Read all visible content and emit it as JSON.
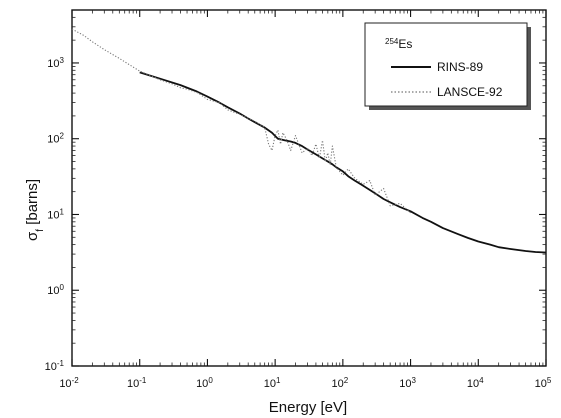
{
  "chart_data": {
    "type": "line",
    "xlabel": "Energy [eV]",
    "ylabel": "σf [barns]",
    "ylabel_main": "σ",
    "ylabel_sub": "f",
    "ylabel_rest": " [barns]",
    "x_scale": "log",
    "y_scale": "log",
    "xlim": [
      0.01,
      100000
    ],
    "ylim": [
      0.1,
      5000
    ],
    "x_ticks": [
      {
        "base": "10",
        "exp": "-2",
        "value": 0.01
      },
      {
        "base": "10",
        "exp": "-1",
        "value": 0.1
      },
      {
        "base": "10",
        "exp": "0",
        "value": 1
      },
      {
        "base": "10",
        "exp": "1",
        "value": 10
      },
      {
        "base": "10",
        "exp": "2",
        "value": 100
      },
      {
        "base": "10",
        "exp": "3",
        "value": 1000
      },
      {
        "base": "10",
        "exp": "4",
        "value": 10000
      },
      {
        "base": "10",
        "exp": "5",
        "value": 100000
      }
    ],
    "y_ticks": [
      {
        "base": "10",
        "exp": "-1",
        "value": 0.1
      },
      {
        "base": "10",
        "exp": "0",
        "value": 1
      },
      {
        "base": "10",
        "exp": "1",
        "value": 10
      },
      {
        "base": "10",
        "exp": "2",
        "value": 100
      },
      {
        "base": "10",
        "exp": "3",
        "value": 1000
      }
    ],
    "legend": {
      "position": "top-right",
      "title_sup": "254",
      "title_main": "Es"
    },
    "series": [
      {
        "name": "RINS-89",
        "style": "solid",
        "color": "#111111",
        "x": [
          0.1,
          0.2,
          0.4,
          0.7,
          1,
          1.5,
          2,
          3,
          4,
          5,
          7,
          9,
          11,
          14,
          17,
          20,
          25,
          30,
          40,
          50,
          60,
          70,
          80,
          100,
          120,
          150,
          200,
          300,
          400,
          500,
          700,
          1000,
          1500,
          2000,
          3000,
          5000,
          7000,
          10000,
          15000,
          20000,
          30000,
          50000,
          70000,
          100000
        ],
        "y": [
          750,
          620,
          510,
          420,
          360,
          300,
          260,
          215,
          185,
          165,
          140,
          120,
          100,
          95,
          92,
          88,
          80,
          72,
          62,
          55,
          50,
          46,
          42,
          37,
          32,
          28,
          24,
          19,
          16,
          14.5,
          12.5,
          11,
          9,
          8,
          6.6,
          5.5,
          4.9,
          4.4,
          4,
          3.7,
          3.5,
          3.3,
          3.2,
          3.15
        ]
      },
      {
        "name": "LANSCE-92",
        "style": "dotted",
        "color": "#777777",
        "x": [
          0.01,
          0.015,
          0.02,
          0.03,
          0.05,
          0.07,
          0.1,
          0.15,
          0.2,
          0.3,
          0.4,
          0.5,
          0.7,
          1,
          1.5,
          2,
          3,
          5,
          7,
          8,
          9,
          10,
          11,
          12,
          13,
          15,
          17,
          20,
          25,
          30,
          35,
          40,
          45,
          50,
          55,
          60,
          65,
          70,
          80,
          100,
          120,
          150,
          200,
          250,
          300,
          400,
          500,
          700,
          1000
        ],
        "y": [
          2800,
          2300,
          1900,
          1500,
          1150,
          950,
          780,
          670,
          600,
          530,
          470,
          450,
          410,
          330,
          300,
          240,
          210,
          170,
          140,
          85,
          70,
          110,
          130,
          85,
          120,
          95,
          70,
          110,
          65,
          75,
          60,
          85,
          55,
          95,
          50,
          65,
          45,
          80,
          42,
          33,
          40,
          30,
          25,
          28,
          18,
          22,
          13,
          14,
          10.5
        ]
      }
    ]
  }
}
